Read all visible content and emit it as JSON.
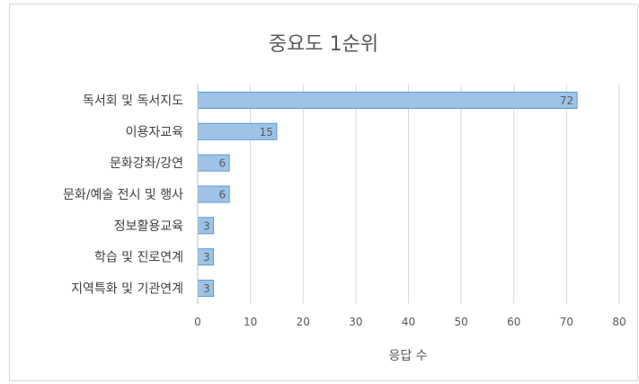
{
  "chart_data": {
    "type": "bar",
    "orientation": "horizontal",
    "title": "중요도 1순위",
    "xlabel": "응답 수",
    "ylabel": "",
    "categories": [
      "독서회 및 독서지도",
      "이용자교육",
      "문화강좌/강연",
      "문화/예술 전시 및 행사",
      "정보활용교육",
      "학습 및 진로연계",
      "지역특화 및 기관연계"
    ],
    "values": [
      72,
      15,
      6,
      6,
      3,
      3,
      3
    ],
    "xlim": [
      0,
      80
    ],
    "xticks": [
      "0",
      "10",
      "20",
      "30",
      "40",
      "50",
      "60",
      "70",
      "80"
    ],
    "grid": true,
    "legend": "none",
    "bar_color": "#9dc3e6",
    "bar_edge_color": "#5b9bd5"
  }
}
